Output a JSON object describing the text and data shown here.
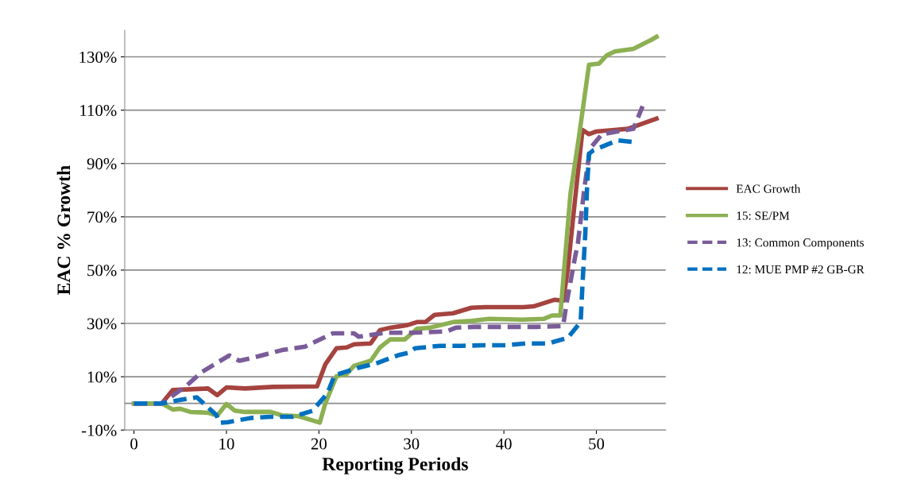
{
  "chart_data": {
    "type": "line",
    "xlabel": "Reporting Periods",
    "ylabel": "EAC % Growth",
    "xlim": [
      -1,
      57.5
    ],
    "xticks": [
      0,
      10,
      20,
      30,
      40,
      50
    ],
    "ylim": [
      -10,
      140
    ],
    "yticks": [
      {
        "value": -10,
        "label": "-10%"
      },
      {
        "value": 10,
        "label": "10%"
      },
      {
        "value": 30,
        "label": "30%"
      },
      {
        "value": 50,
        "label": "50%"
      },
      {
        "value": 70,
        "label": "70%"
      },
      {
        "value": 90,
        "label": "90%"
      },
      {
        "value": 110,
        "label": "110%"
      },
      {
        "value": 130,
        "label": "130%"
      }
    ],
    "grid": "y",
    "legend": "right",
    "marker": "none",
    "ref_lines": [
      {
        "axis": "y",
        "value": 0,
        "color": "#8c8c8c"
      }
    ],
    "series": [
      {
        "name": "EAC Growth",
        "color": "#a5433f",
        "line_style": "solid",
        "x": [
          0,
          3,
          4.2,
          8,
          9,
          10,
          12,
          15,
          19.8,
          20.7,
          21.9,
          23,
          23.8,
          25.6,
          26.6,
          27.7,
          29.5,
          30.6,
          31.5,
          32.5,
          34.5,
          36.5,
          38,
          42.1,
          43.2,
          45.5,
          46.4,
          46.9,
          47.7,
          48.5,
          49.2,
          50,
          53.4,
          56.5
        ],
        "values": [
          0,
          0,
          5,
          5.6,
          3.1,
          6,
          5.6,
          6.2,
          6.4,
          14.7,
          20.7,
          21,
          22.2,
          22.5,
          27.5,
          28.4,
          29.3,
          30.5,
          30.5,
          33.2,
          33.8,
          35.9,
          36.1,
          36.1,
          36.4,
          38.9,
          38.5,
          50,
          76.7,
          102.6,
          101,
          102,
          103,
          106.8
        ]
      },
      {
        "name": "15: SE/PM",
        "color": "#8cb052",
        "line_style": "solid",
        "x": [
          0,
          3,
          4.2,
          5,
          6.1,
          8,
          9,
          10,
          10.9,
          12,
          14.8,
          16,
          17.8,
          19.6,
          20.1,
          20.7,
          21.9,
          23,
          23.8,
          25.6,
          26.6,
          27.7,
          29.3,
          30.6,
          32,
          34.5,
          36.5,
          38.4,
          42,
          44.3,
          45.2,
          46.1,
          47.2,
          48.1,
          49.2,
          50.3,
          51.1,
          52,
          54,
          56,
          56.5
        ],
        "values": [
          0,
          0,
          -2.3,
          -2,
          -3.2,
          -3.5,
          -4.6,
          -0.2,
          -2.7,
          -3.2,
          -3.2,
          -4.5,
          -4.8,
          -6.7,
          -7.2,
          0.1,
          10.2,
          11,
          14.1,
          16,
          21,
          24,
          24,
          28,
          28.4,
          30.5,
          31,
          31.7,
          31.4,
          31.7,
          33,
          33,
          78.8,
          99.6,
          127,
          127.5,
          130.5,
          132,
          133,
          136.5,
          137.5
        ]
      },
      {
        "name": "13: Common Components",
        "color": "#7a5c99",
        "line_style": "dashed",
        "x": [
          0,
          3,
          5.7,
          7.3,
          10.3,
          11.4,
          12.7,
          16,
          18.5,
          21.5,
          23.8,
          24.3,
          27.2,
          30.1,
          33.8,
          34.8,
          36.8,
          43.5,
          46.4,
          46.8,
          47.7,
          48,
          48.7,
          49.3,
          50.6,
          54,
          55
        ],
        "values": [
          0,
          0,
          6.7,
          11.7,
          18,
          16,
          17,
          20,
          21.3,
          26.3,
          26.3,
          25,
          26.5,
          26.5,
          27,
          28.4,
          28.7,
          28.7,
          29,
          38,
          55,
          60,
          80.6,
          95.5,
          101,
          103,
          111.5
        ]
      },
      {
        "name": "12: MUE PMP #2 GB-GR",
        "color": "#0070c0",
        "line_style": "dashed",
        "x": [
          0,
          3,
          5,
          6.8,
          8.9,
          9.3,
          10.2,
          12.6,
          14.7,
          17.2,
          19.3,
          20.9,
          21.7,
          24.2,
          26.2,
          28.5,
          29.7,
          30.4,
          33.1,
          35.4,
          37.7,
          40.2,
          42.4,
          44.8,
          46.9,
          48.3,
          48.5,
          48.8,
          49,
          49.2,
          49.7,
          52.3,
          54.2
        ],
        "values": [
          0,
          0,
          1.3,
          2.3,
          -4.3,
          -7.3,
          -7,
          -5.5,
          -5,
          -5,
          -2.8,
          3.7,
          10.6,
          13.3,
          15,
          18,
          19,
          20.7,
          21.6,
          21.6,
          21.8,
          21.8,
          22.5,
          22.5,
          24.6,
          30.5,
          44.8,
          63.6,
          81.7,
          93.6,
          95,
          98.7,
          98
        ]
      }
    ]
  }
}
